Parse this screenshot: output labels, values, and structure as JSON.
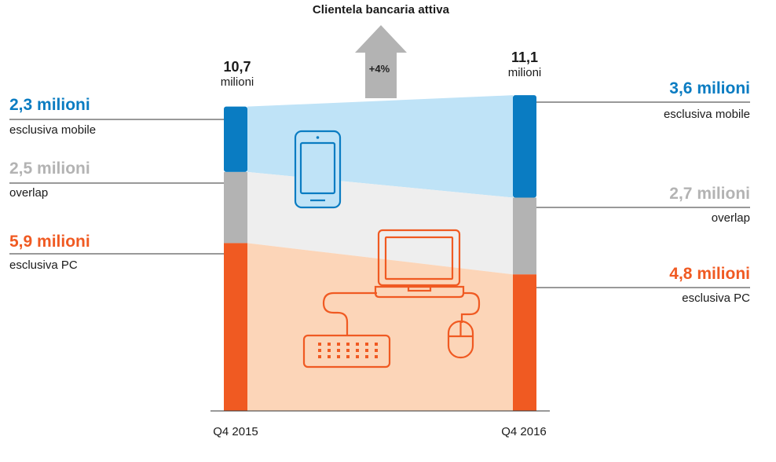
{
  "title": "Clientela bancaria attiva",
  "growth_label": "+4%",
  "colors": {
    "mobile": "#0a7cc2",
    "overlap": "#b3b3b3",
    "pc": "#f05a22",
    "mobile_fill": "#bfe3f7",
    "overlap_fill": "#eeeeee",
    "pc_fill": "#fcd5b8",
    "arrow": "#b3b3b3",
    "line": "#333333"
  },
  "left": {
    "total_value": "10,7",
    "total_unit": "milioni",
    "period": "Q4 2015",
    "segments": [
      {
        "value": "2,3 milioni",
        "desc": "esclusiva mobile"
      },
      {
        "value": "2,5 milioni",
        "desc": "overlap"
      },
      {
        "value": "5,9 milioni",
        "desc": "esclusiva PC"
      }
    ]
  },
  "right": {
    "total_value": "11,1",
    "total_unit": "milioni",
    "period": "Q4 2016",
    "segments": [
      {
        "value": "3,6 milioni",
        "desc": "esclusiva mobile"
      },
      {
        "value": "2,7 milioni",
        "desc": "overlap"
      },
      {
        "value": "4,8 milioni",
        "desc": "esclusiva PC"
      }
    ]
  },
  "icons": [
    "smartphone-icon",
    "laptop-icon",
    "keyboard-icon",
    "mouse-icon",
    "up-arrow-icon"
  ],
  "chart_data": {
    "type": "bar",
    "title": "Clientela bancaria attiva",
    "categories": [
      "Q4 2015",
      "Q4 2016"
    ],
    "totals": [
      10.7,
      11.1
    ],
    "unit": "milioni",
    "series": [
      {
        "name": "esclusiva mobile",
        "values": [
          2.3,
          3.6
        ]
      },
      {
        "name": "overlap",
        "values": [
          2.5,
          2.7
        ]
      },
      {
        "name": "esclusiva PC",
        "values": [
          5.9,
          4.8
        ]
      }
    ],
    "growth": "+4%",
    "stacked": true
  }
}
